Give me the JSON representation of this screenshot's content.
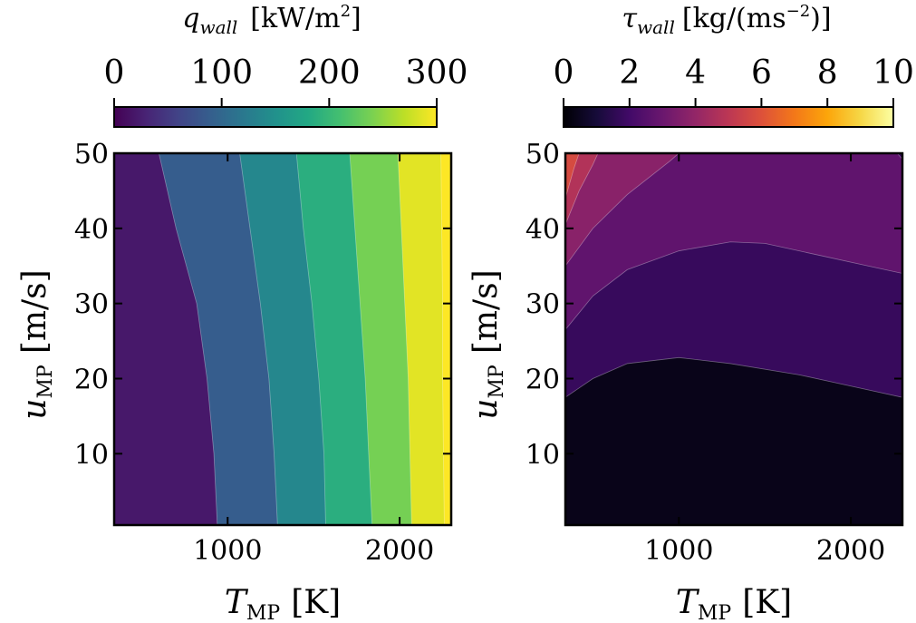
{
  "chart_data": [
    {
      "type": "contour",
      "xlabel_symbol": "T",
      "xlabel_sub": "MP",
      "xlabel_unit": "[K]",
      "ylabel_symbol": "u",
      "ylabel_sub": "MP",
      "ylabel_unit": "[m/s]",
      "xlim": [
        340,
        2300
      ],
      "ylim": [
        0.5,
        50
      ],
      "xticks": [
        1000,
        2000
      ],
      "yticks": [
        10,
        20,
        30,
        40,
        50
      ],
      "colorbar": {
        "label_symbol": "q",
        "label_sub": "wall",
        "label_unit": "[kW/m",
        "label_sup": "2",
        "label_close": "]",
        "ticks": [
          0,
          100,
          200,
          300
        ],
        "range": [
          0,
          300
        ],
        "colormap": "viridis"
      },
      "levels": [
        0,
        50,
        100,
        150,
        200,
        250,
        300
      ],
      "boundaries": [
        {
          "between": [
            50,
            100
          ],
          "points": [
            [
              600,
              50
            ],
            [
              700,
              40
            ],
            [
              820,
              30
            ],
            [
              880,
              20
            ],
            [
              920,
              10
            ],
            [
              940,
              0.5
            ]
          ]
        },
        {
          "between": [
            100,
            150
          ],
          "points": [
            [
              1070,
              50
            ],
            [
              1130,
              40
            ],
            [
              1190,
              30
            ],
            [
              1240,
              20
            ],
            [
              1270,
              10
            ],
            [
              1290,
              0.5
            ]
          ]
        },
        {
          "between": [
            150,
            200
          ],
          "points": [
            [
              1400,
              50
            ],
            [
              1440,
              40
            ],
            [
              1490,
              30
            ],
            [
              1530,
              20
            ],
            [
              1560,
              10
            ],
            [
              1570,
              0.5
            ]
          ]
        },
        {
          "between": [
            200,
            250
          ],
          "points": [
            [
              1710,
              50
            ],
            [
              1740,
              40
            ],
            [
              1770,
              30
            ],
            [
              1800,
              20
            ],
            [
              1820,
              10
            ],
            [
              1840,
              0.5
            ]
          ]
        },
        {
          "between": [
            250,
            300
          ],
          "points": [
            [
              1990,
              50
            ],
            [
              2010,
              40
            ],
            [
              2030,
              30
            ],
            [
              2050,
              20
            ],
            [
              2060,
              10
            ],
            [
              2070,
              0.5
            ]
          ]
        },
        {
          "between": [
            300,
            350
          ],
          "points": [
            [
              2240,
              50
            ],
            [
              2245,
              40
            ],
            [
              2250,
              30
            ],
            [
              2250,
              20
            ],
            [
              2255,
              10
            ],
            [
              2260,
              0.5
            ]
          ]
        }
      ]
    },
    {
      "type": "contour",
      "xlabel_symbol": "T",
      "xlabel_sub": "MP",
      "xlabel_unit": "[K]",
      "ylabel_symbol": "u",
      "ylabel_sub": "MP",
      "ylabel_unit": "[m/s]",
      "xlim": [
        340,
        2300
      ],
      "ylim": [
        0.5,
        50
      ],
      "xticks": [
        1000,
        2000
      ],
      "yticks": [
        10,
        20,
        30,
        40,
        50
      ],
      "colorbar": {
        "label_symbol": "τ",
        "label_sub": "wall",
        "label_unit": "[kg/(ms",
        "label_sup": "−2",
        "label_close": ")]",
        "ticks": [
          0,
          2,
          4,
          6,
          8,
          10
        ],
        "range": [
          0,
          10
        ],
        "colormap": "inferno"
      },
      "levels": [
        0,
        1,
        2,
        3,
        4,
        5,
        6
      ],
      "boundaries": [
        {
          "between": [
            1,
            2
          ],
          "points": [
            [
              340,
              17.5
            ],
            [
              500,
              20
            ],
            [
              700,
              22
            ],
            [
              1000,
              22.8
            ],
            [
              1300,
              22
            ],
            [
              1700,
              20.5
            ],
            [
              2000,
              19
            ],
            [
              2300,
              17.5
            ]
          ]
        },
        {
          "between": [
            2,
            3
          ],
          "points": [
            [
              340,
              26.5
            ],
            [
              500,
              31
            ],
            [
              700,
              34.5
            ],
            [
              1000,
              37
            ],
            [
              1300,
              38.2
            ],
            [
              1500,
              38
            ],
            [
              1800,
              36.5
            ],
            [
              2100,
              35
            ],
            [
              2300,
              34
            ]
          ]
        },
        {
          "between": [
            3,
            4
          ],
          "points": [
            [
              340,
              35
            ],
            [
              500,
              40
            ],
            [
              700,
              44.5
            ],
            [
              950,
              49
            ],
            [
              1000,
              50
            ]
          ]
        },
        {
          "between": [
            4,
            5
          ],
          "points": [
            [
              340,
              40.5
            ],
            [
              420,
              45
            ],
            [
              500,
              48.5
            ],
            [
              530,
              50
            ]
          ]
        },
        {
          "between": [
            5,
            6
          ],
          "points": [
            [
              340,
              44
            ],
            [
              390,
              48
            ],
            [
              420,
              50
            ]
          ]
        },
        {
          "between": [
            1,
            2
          ],
          "corner": true,
          "points": [
            [
              2270,
              50
            ],
            [
              2300,
              49.2
            ]
          ]
        }
      ]
    }
  ]
}
